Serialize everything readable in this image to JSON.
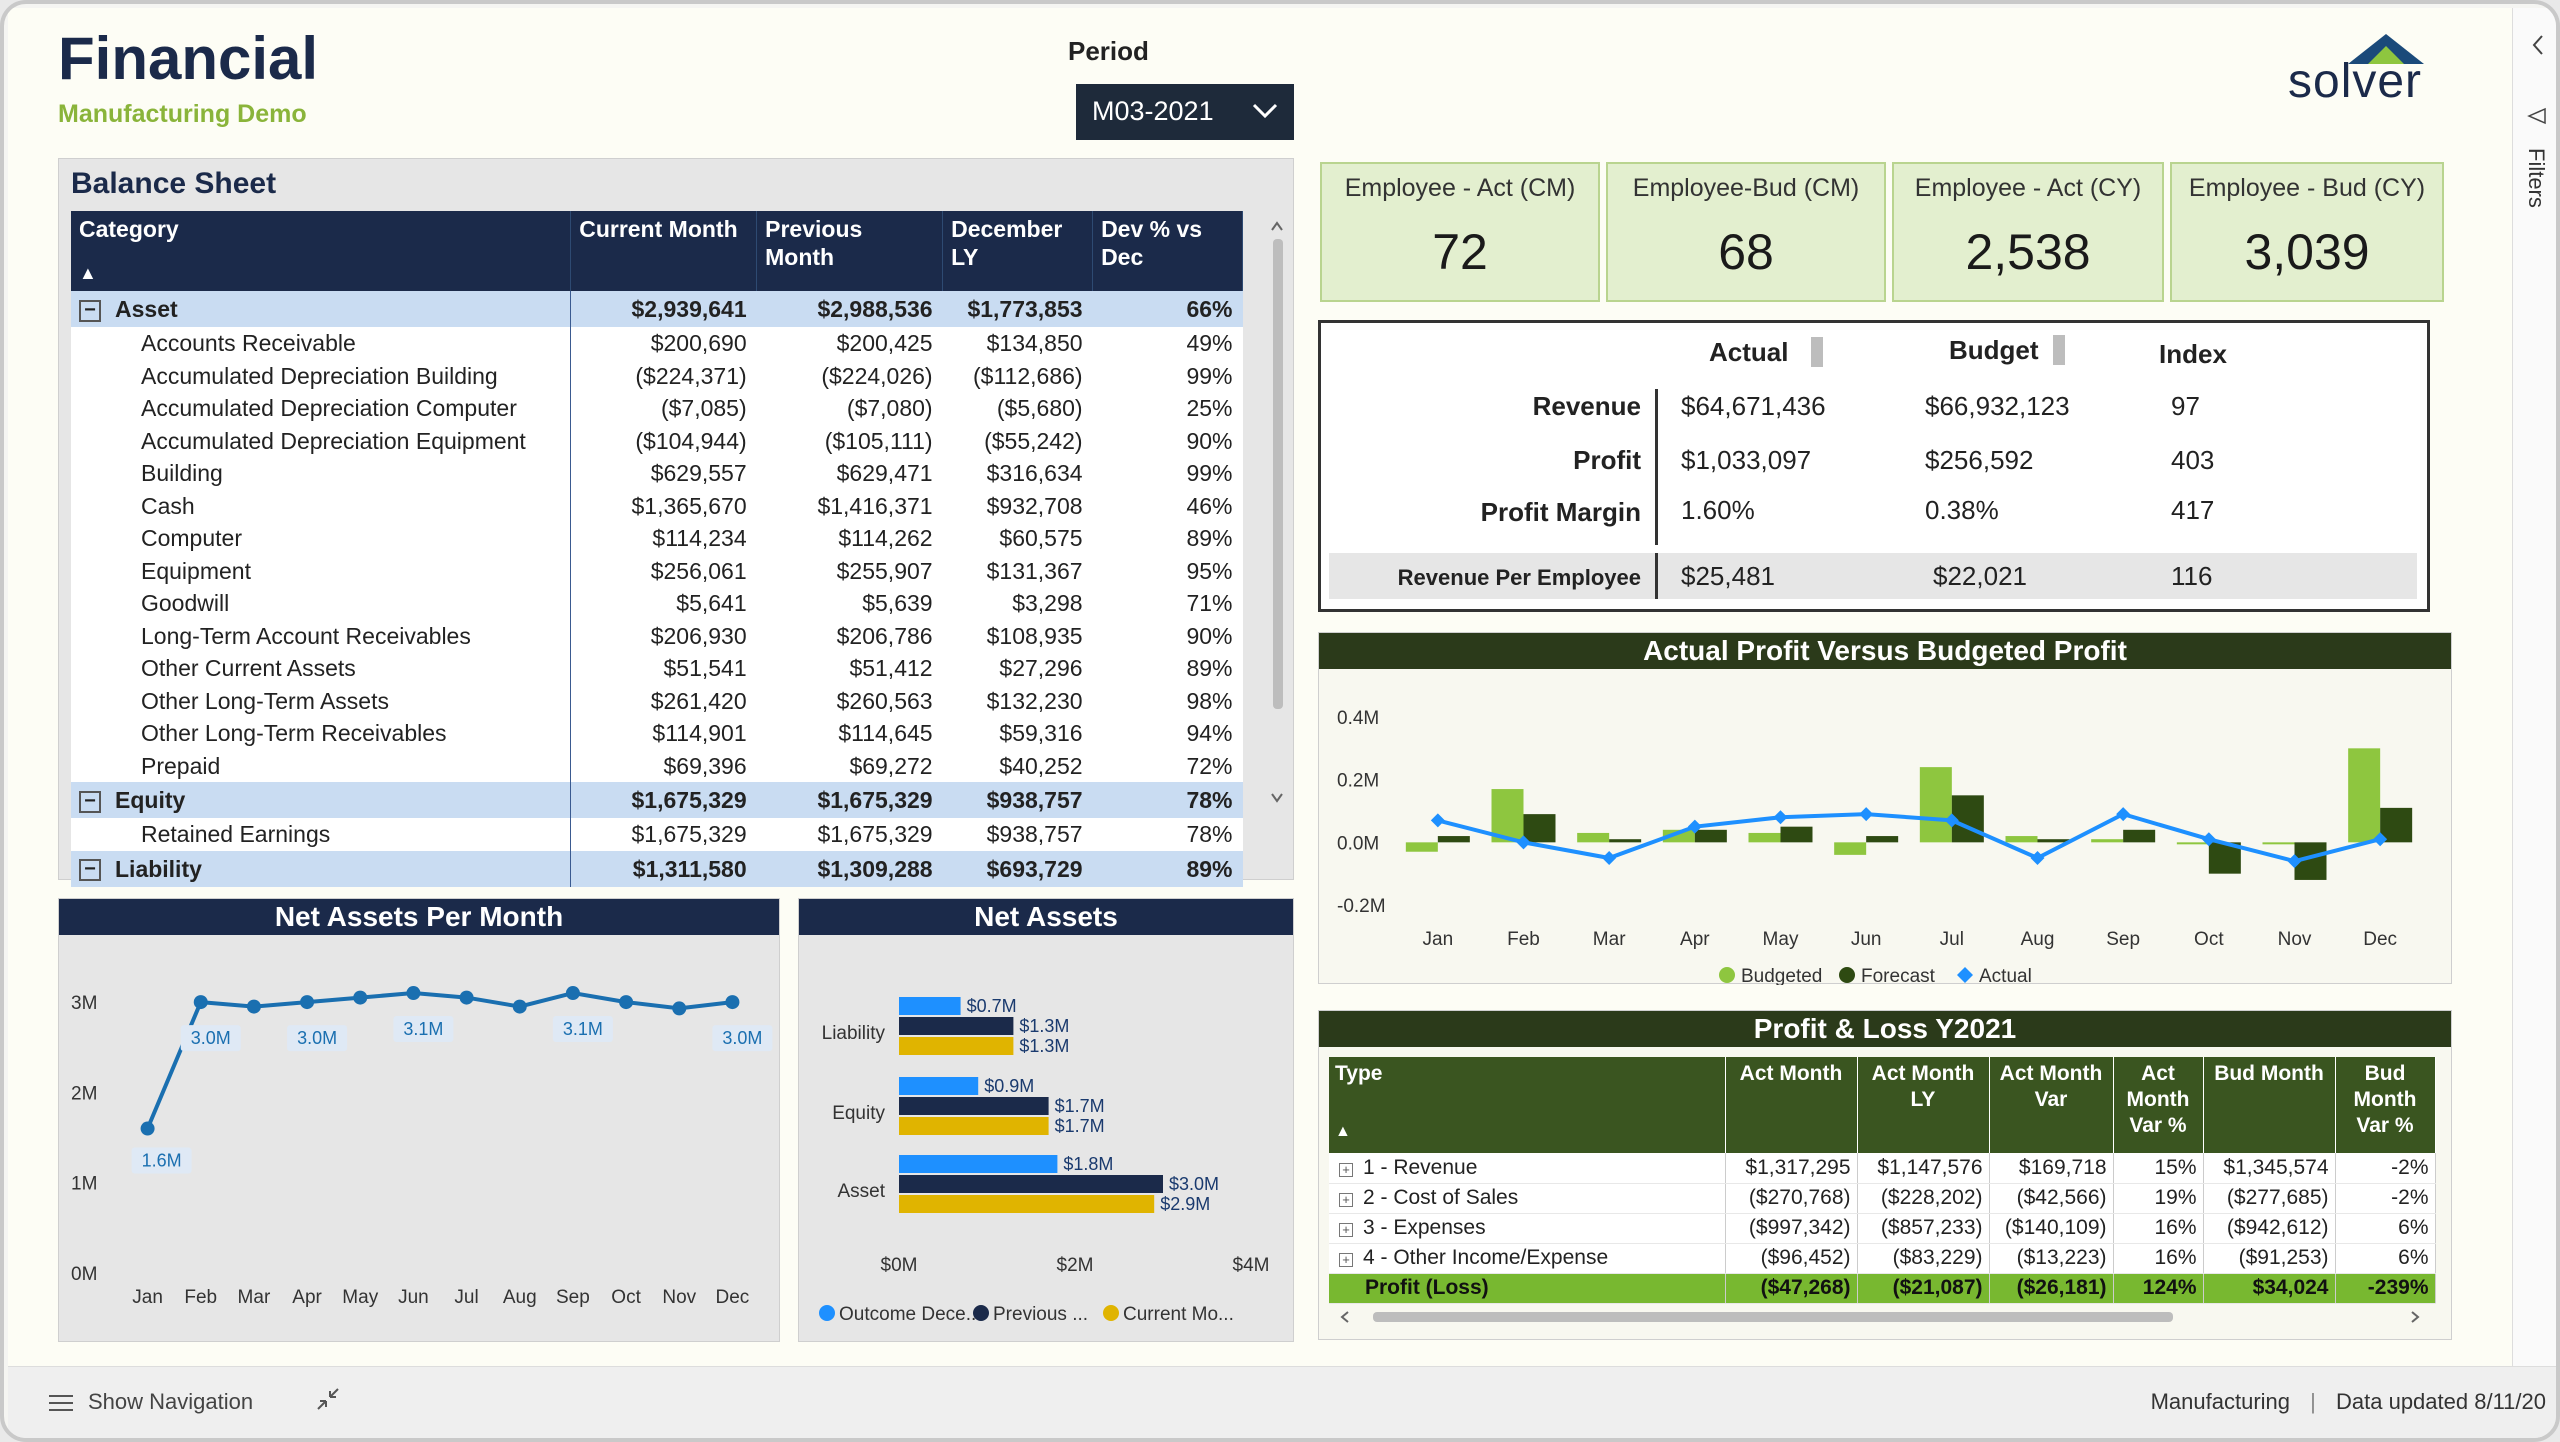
{
  "header": {
    "title": "Financial",
    "subtitle": "Manufacturing Demo",
    "period_label": "Period",
    "period_value": "M03-2021",
    "logo_text": "solver"
  },
  "balance_sheet": {
    "title": "Balance Sheet",
    "columns": [
      "Category",
      "Current Month",
      "Previous Month",
      "December LY",
      "Dev % vs Dec"
    ],
    "groups": [
      {
        "name": "Asset",
        "values": [
          "$2,939,641",
          "$2,988,536",
          "$1,773,853",
          "66%"
        ],
        "toggle": "−",
        "rows": [
          [
            "Accounts Receivable",
            "$200,690",
            "$200,425",
            "$134,850",
            "49%"
          ],
          [
            "Accumulated Depreciation Building",
            "($224,371)",
            "($224,026)",
            "($112,686)",
            "99%"
          ],
          [
            "Accumulated Depreciation Computer",
            "($7,085)",
            "($7,080)",
            "($5,680)",
            "25%"
          ],
          [
            "Accumulated Depreciation Equipment",
            "($104,944)",
            "($105,111)",
            "($55,242)",
            "90%"
          ],
          [
            "Building",
            "$629,557",
            "$629,471",
            "$316,634",
            "99%"
          ],
          [
            "Cash",
            "$1,365,670",
            "$1,416,371",
            "$932,708",
            "46%"
          ],
          [
            "Computer",
            "$114,234",
            "$114,262",
            "$60,575",
            "89%"
          ],
          [
            "Equipment",
            "$256,061",
            "$255,907",
            "$131,367",
            "95%"
          ],
          [
            "Goodwill",
            "$5,641",
            "$5,639",
            "$3,298",
            "71%"
          ],
          [
            "Long-Term Account Receivables",
            "$206,930",
            "$206,786",
            "$108,935",
            "90%"
          ],
          [
            "Other Current Assets",
            "$51,541",
            "$51,412",
            "$27,296",
            "89%"
          ],
          [
            "Other Long-Term Assets",
            "$261,420",
            "$260,563",
            "$132,230",
            "98%"
          ],
          [
            "Other Long-Term Receivables",
            "$114,901",
            "$114,645",
            "$59,316",
            "94%"
          ],
          [
            "Prepaid",
            "$69,396",
            "$69,272",
            "$40,252",
            "72%"
          ]
        ]
      },
      {
        "name": "Equity",
        "values": [
          "$1,675,329",
          "$1,675,329",
          "$938,757",
          "78%"
        ],
        "toggle": "−",
        "rows": [
          [
            "Retained Earnings",
            "$1,675,329",
            "$1,675,329",
            "$938,757",
            "78%"
          ]
        ]
      },
      {
        "name": "Liability",
        "values": [
          "$1,311,580",
          "$1,309,288",
          "$693,729",
          "89%"
        ],
        "toggle": "−",
        "rows": []
      }
    ]
  },
  "kpis": [
    {
      "label": "Employee - Act (CM)",
      "value": "72"
    },
    {
      "label": "Employee-Bud (CM)",
      "value": "68"
    },
    {
      "label": "Employee - Act (CY)",
      "value": "2,538"
    },
    {
      "label": "Employee - Bud (CY)",
      "value": "3,039"
    }
  ],
  "revenue_box": {
    "headers": [
      "Actual",
      "Budget",
      "Index"
    ],
    "rows": [
      {
        "label": "Revenue",
        "actual": "$64,671,436",
        "budget": "$66,932,123",
        "index": "97"
      },
      {
        "label": "Profit",
        "actual": "$1,033,097",
        "budget": "$256,592",
        "index": "403"
      },
      {
        "label": "Profit Margin",
        "actual": "1.60%",
        "budget": "0.38%",
        "index": "417"
      }
    ],
    "per_employee": {
      "label": "Revenue Per Employee",
      "actual": "$25,481",
      "budget": "$22,021",
      "index": "116"
    }
  },
  "profit_chart": {
    "title": "Actual Profit Versus Budgeted Profit",
    "legend": [
      "Budgeted",
      "Forecast",
      "Actual"
    ]
  },
  "pnl": {
    "title": "Profit & Loss Y2021",
    "columns": [
      "Type",
      "Act Month",
      "Act Month LY",
      "Act Month Var",
      "Act Month Var %",
      "Bud Month",
      "Bud Month Var %"
    ],
    "rows": [
      [
        "1 - Revenue",
        "$1,317,295",
        "$1,147,576",
        "$169,718",
        "15%",
        "$1,345,574",
        "-2%"
      ],
      [
        "2 - Cost of Sales",
        "($270,768)",
        "($228,202)",
        "($42,566)",
        "19%",
        "($277,685)",
        "-2%"
      ],
      [
        "3 - Expenses",
        "($997,342)",
        "($857,233)",
        "($140,109)",
        "16%",
        "($942,612)",
        "6%"
      ],
      [
        "4 - Other Income/Expense",
        "($96,452)",
        "($83,229)",
        "($13,223)",
        "16%",
        "($91,253)",
        "6%"
      ]
    ],
    "total": [
      "Profit (Loss)",
      "($47,268)",
      "($21,087)",
      "($26,181)",
      "124%",
      "$34,024",
      "-239%"
    ]
  },
  "net_assets_month": {
    "title": "Net Assets Per Month"
  },
  "net_assets": {
    "title": "Net Assets",
    "legend": [
      "Outcome Dece...",
      "Previous ...",
      "Current Mo..."
    ]
  },
  "sidebar": {
    "filters_label": "Filters"
  },
  "footer": {
    "nav_label": "Show Navigation",
    "workspace": "Manufacturing",
    "updated": "Data updated 8/11/20"
  },
  "colors": {
    "navy": "#1b2a4a",
    "green_light": "#8ec63f",
    "green_dark": "#2e4a12",
    "blue": "#1e90ff",
    "gold": "#e0b400"
  },
  "chart_data": [
    {
      "type": "bar",
      "title": "Actual Profit Versus Budgeted Profit",
      "categories": [
        "Jan",
        "Feb",
        "Mar",
        "Apr",
        "May",
        "Jun",
        "Jul",
        "Aug",
        "Sep",
        "Oct",
        "Nov",
        "Dec"
      ],
      "series": [
        {
          "name": "Budgeted",
          "values": [
            -0.03,
            0.17,
            0.03,
            0.04,
            0.03,
            -0.04,
            0.24,
            0.02,
            0.01,
            0.0,
            0.0,
            0.3
          ]
        },
        {
          "name": "Forecast",
          "values": [
            0.02,
            0.09,
            0.01,
            0.04,
            0.05,
            0.02,
            0.15,
            0.01,
            0.04,
            -0.1,
            -0.12,
            0.11
          ]
        },
        {
          "name": "Actual",
          "type": "line",
          "values": [
            0.07,
            0.0,
            -0.05,
            0.05,
            0.08,
            0.09,
            0.07,
            -0.05,
            0.09,
            0.01,
            -0.06,
            0.01
          ]
        }
      ],
      "ylim": [
        -0.2,
        0.4
      ],
      "yticks": [
        "-0.2M",
        "0.0M",
        "0.2M",
        "0.4M"
      ],
      "legend": "bottom"
    },
    {
      "type": "line",
      "title": "Net Assets Per Month",
      "categories": [
        "Jan",
        "Feb",
        "Mar",
        "Apr",
        "May",
        "Jun",
        "Jul",
        "Aug",
        "Sep",
        "Oct",
        "Nov",
        "Dec"
      ],
      "values": [
        1.6,
        3.0,
        2.95,
        3.0,
        3.05,
        3.1,
        3.05,
        2.95,
        3.1,
        3.0,
        2.93,
        3.0
      ],
      "labels": [
        "1.6M",
        "3.0M",
        "",
        "3.0M",
        "",
        "3.1M",
        "",
        "",
        "3.1M",
        "",
        "",
        "3.0M"
      ],
      "ylim": [
        0,
        3.3
      ],
      "yticks": [
        "0M",
        "1M",
        "2M",
        "3M"
      ]
    },
    {
      "type": "bar",
      "title": "Net Assets",
      "orientation": "horizontal",
      "categories": [
        "Liability",
        "Equity",
        "Asset"
      ],
      "series": [
        {
          "name": "Outcome Dece...",
          "values": [
            0.7,
            0.9,
            1.8
          ],
          "labels": [
            "$0.7M",
            "$0.9M",
            "$1.8M"
          ]
        },
        {
          "name": "Previous ...",
          "values": [
            1.3,
            1.7,
            3.0
          ],
          "labels": [
            "$1.3M",
            "$1.7M",
            "$3.0M"
          ]
        },
        {
          "name": "Current Mo...",
          "values": [
            1.3,
            1.7,
            2.9
          ],
          "labels": [
            "$1.3M",
            "$1.7M",
            "$2.9M"
          ]
        }
      ],
      "xlim": [
        0,
        4
      ],
      "xticks": [
        "$0M",
        "$2M",
        "$4M"
      ]
    }
  ]
}
